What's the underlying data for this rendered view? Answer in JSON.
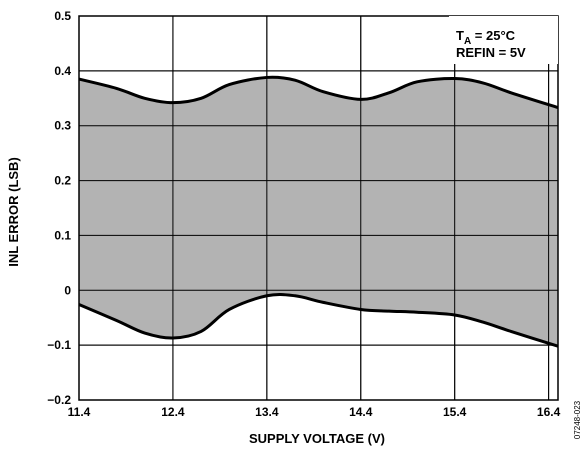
{
  "chart_data": {
    "type": "area",
    "xlabel": "SUPPLY VOLTAGE (V)",
    "ylabel": "INL ERROR (LSB)",
    "xlim": [
      11.4,
      16.5
    ],
    "ylim": [
      -0.2,
      0.5
    ],
    "x_ticks": [
      "11.4",
      "12.4",
      "13.4",
      "14.4",
      "15.4",
      "16.4"
    ],
    "y_ticks": [
      "−0.2",
      "−0.1",
      "0",
      "0.1",
      "0.2",
      "0.3",
      "0.4",
      "0.5"
    ],
    "grid": true,
    "annotation": {
      "line1_main": "T",
      "line1_sub": "A",
      "line1_rest": " = 25°C",
      "line2": "REFIN = 5V"
    },
    "figure_id": "07248-023",
    "fill_color": "#b3b3b3",
    "line_color": "#000000",
    "series": [
      {
        "role": "upper",
        "x": [
          11.4,
          11.8,
          12.1,
          12.4,
          12.7,
          13.0,
          13.4,
          13.7,
          14.0,
          14.4,
          14.7,
          15.0,
          15.4,
          15.7,
          16.0,
          16.5
        ],
        "values": [
          0.385,
          0.368,
          0.35,
          0.342,
          0.35,
          0.375,
          0.388,
          0.383,
          0.362,
          0.348,
          0.36,
          0.38,
          0.386,
          0.378,
          0.36,
          0.333
        ]
      },
      {
        "role": "lower",
        "x": [
          11.4,
          11.8,
          12.1,
          12.4,
          12.7,
          13.0,
          13.4,
          13.7,
          14.0,
          14.4,
          14.7,
          15.0,
          15.4,
          15.7,
          16.0,
          16.5
        ],
        "values": [
          -0.026,
          -0.055,
          -0.078,
          -0.087,
          -0.075,
          -0.035,
          -0.01,
          -0.01,
          -0.022,
          -0.035,
          -0.038,
          -0.04,
          -0.045,
          -0.058,
          -0.075,
          -0.102
        ]
      }
    ]
  }
}
